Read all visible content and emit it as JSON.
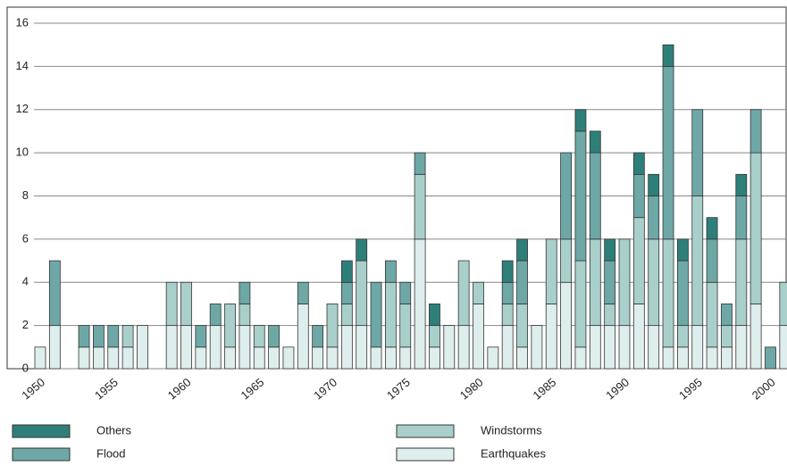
{
  "chart_data": {
    "type": "stacked_bar",
    "categories": [
      "1950",
      null,
      null,
      null,
      null,
      "1955",
      null,
      null,
      null,
      null,
      "1960",
      null,
      null,
      null,
      null,
      "1965",
      null,
      null,
      null,
      null,
      "1970",
      null,
      null,
      null,
      null,
      "1975",
      null,
      null,
      null,
      null,
      "1980",
      null,
      null,
      null,
      null,
      "1985",
      null,
      null,
      null,
      null,
      "1990",
      null,
      null,
      null,
      null,
      "1995",
      null,
      null,
      null,
      null,
      "2000",
      null
    ],
    "series": [
      {
        "name": "Earthquakes",
        "color": "#deeeec",
        "values": [
          1,
          2,
          0,
          1,
          1,
          1,
          1,
          2,
          0,
          2,
          2,
          1,
          2,
          1,
          2,
          1,
          1,
          1,
          3,
          1,
          1,
          2,
          2,
          1,
          1,
          1,
          6,
          1,
          2,
          2,
          3,
          1,
          2,
          1,
          2,
          3,
          4,
          1,
          2,
          2,
          2,
          3,
          2,
          1,
          1,
          2,
          1,
          1,
          2,
          3,
          0,
          2
        ]
      },
      {
        "name": "Windstorms",
        "color": "#a9cfcb",
        "values": [
          0,
          0,
          0,
          0,
          0,
          0,
          1,
          0,
          0,
          2,
          2,
          0,
          0,
          2,
          1,
          1,
          0,
          0,
          0,
          0,
          2,
          1,
          3,
          0,
          3,
          2,
          3,
          1,
          0,
          3,
          1,
          0,
          1,
          2,
          0,
          3,
          2,
          4,
          4,
          1,
          4,
          4,
          4,
          5,
          1,
          6,
          3,
          1,
          4,
          7,
          0,
          2
        ]
      },
      {
        "name": "Flood",
        "color": "#6ea8a6",
        "values": [
          0,
          3,
          0,
          1,
          1,
          1,
          0,
          0,
          0,
          0,
          0,
          1,
          1,
          0,
          1,
          0,
          1,
          0,
          1,
          1,
          0,
          1,
          0,
          3,
          1,
          1,
          1,
          0,
          0,
          0,
          0,
          0,
          1,
          2,
          0,
          0,
          4,
          6,
          4,
          2,
          0,
          2,
          2,
          8,
          3,
          4,
          2,
          1,
          2,
          2,
          1,
          0
        ]
      },
      {
        "name": "Others",
        "color": "#2e7f7a",
        "values": [
          0,
          0,
          0,
          0,
          0,
          0,
          0,
          0,
          0,
          0,
          0,
          0,
          0,
          0,
          0,
          0,
          0,
          0,
          0,
          0,
          0,
          1,
          1,
          0,
          0,
          0,
          0,
          1,
          0,
          0,
          0,
          0,
          1,
          1,
          0,
          0,
          0,
          1,
          1,
          1,
          0,
          1,
          1,
          1,
          1,
          0,
          1,
          0,
          1,
          0,
          0,
          0
        ]
      }
    ],
    "ylim": [
      0,
      16
    ],
    "yticks": [
      0,
      2,
      4,
      6,
      8,
      10,
      12,
      14,
      16
    ],
    "grid": true
  }
}
